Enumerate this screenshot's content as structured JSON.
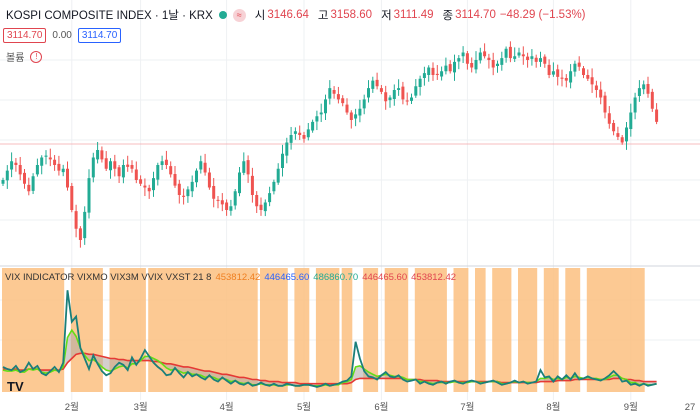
{
  "header": {
    "symbol": "KOSPI COMPOSITE INDEX · 1날 · KRX",
    "pill": "≈",
    "open_label": "시",
    "open": "3146.64",
    "high_label": "고",
    "high": "3158.60",
    "low_label": "저",
    "low": "3111.49",
    "close_label": "종",
    "close": "3114.70",
    "change": "−48.29 (−1.53%)"
  },
  "quote_boxes": {
    "sell": "3114.70",
    "spread": "0.00",
    "buy": "3114.70"
  },
  "volume": {
    "label": "볼륨",
    "warning_icon": "warning-icon"
  },
  "indicator": {
    "name": "VIX INDICATOR VIXMO VIX3M VVIX VXST 21 8",
    "v1": "453812.42",
    "v2": "446465.60",
    "v3": "486860.70",
    "v4": "446465.60",
    "v5": "453812.42"
  },
  "watermark": "TV",
  "colors": {
    "up": "#22ab94",
    "down": "#ef5350",
    "shade": "#fbbf80",
    "fast": "#1b7f7a",
    "slow": "#e53935",
    "signal": "#64dd17"
  },
  "chart_data": [
    {
      "type": "candlestick",
      "title": "KOSPI COMPOSITE INDEX",
      "price_line": 3114.7,
      "x_ticks": [
        "2월",
        "3월",
        "4월",
        "5월",
        "6월",
        "7월",
        "8월",
        "9월",
        "27"
      ],
      "trend": [
        2960,
        2985,
        3010,
        3000,
        2975,
        2950,
        2930,
        2970,
        3000,
        3020,
        3025,
        3015,
        3000,
        2985,
        2990,
        2940,
        2880,
        2830,
        2800,
        2875,
        2965,
        3020,
        3040,
        3015,
        2990,
        3010,
        2990,
        2970,
        3000,
        2995,
        2990,
        2960,
        2950,
        2940,
        2930,
        2965,
        3000,
        3010,
        3000,
        2975,
        2945,
        2920,
        2915,
        2935,
        2955,
        2985,
        3010,
        2980,
        2940,
        2910,
        2905,
        2895,
        2880,
        2890,
        2930,
        2980,
        3010,
        2975,
        2920,
        2890,
        2880,
        2900,
        2925,
        2955,
        2990,
        3030,
        3060,
        3080,
        3090,
        3080,
        3070,
        3095,
        3115,
        3130,
        3140,
        3175,
        3205,
        3190,
        3175,
        3165,
        3140,
        3120,
        3135,
        3150,
        3175,
        3205,
        3225,
        3210,
        3195,
        3170,
        3180,
        3200,
        3205,
        3175,
        3170,
        3180,
        3210,
        3230,
        3245,
        3260,
        3240,
        3240,
        3250,
        3265,
        3250,
        3275,
        3285,
        3300,
        3270,
        3260,
        3280,
        3300,
        3290,
        3280,
        3260,
        3270,
        3285,
        3310,
        3285,
        3290,
        3300,
        3290,
        3280,
        3290,
        3275,
        3285,
        3270,
        3240,
        3250,
        3235,
        3230,
        3225,
        3250,
        3270,
        3262,
        3240,
        3230,
        3215,
        3200,
        3180,
        3140,
        3110,
        3090,
        3075,
        3060,
        3100,
        3140,
        3180,
        3205,
        3215,
        3190,
        3150,
        3115
      ]
    },
    {
      "type": "line",
      "title": "VIX INDICATOR VIXMO VIX3M VVIX VXST 21 8",
      "series": [
        {
          "values": [
            2.2,
            2.0,
            1.9,
            2.3,
            1.7,
            1.9,
            2.6,
            2.0,
            2.3,
            1.6,
            1.4,
            1.8,
            2.2,
            1.7,
            2.6,
            9.5,
            6.5,
            7.0,
            4.0,
            3.0,
            2.0,
            3.3,
            2.5,
            1.8,
            1.4,
            1.6,
            2.2,
            2.6,
            2.4,
            1.9,
            3.1,
            2.4,
            3.0,
            3.8,
            3.2,
            2.6,
            2.2,
            1.9,
            1.4,
            1.5,
            2.1,
            1.6,
            1.2,
            1.7,
            1.3,
            1.5,
            1.2,
            1.0,
            1.4,
            1.0,
            0.8,
            1.2,
            0.9,
            0.6,
            0.9,
            0.6,
            0.5,
            0.7,
            0.4,
            0.5,
            0.7,
            0.5,
            0.4,
            0.6,
            0.4,
            0.4,
            0.6,
            0.5,
            0.4,
            0.4,
            0.5,
            0.5,
            0.4,
            0.3,
            0.4,
            0.6,
            0.4,
            0.5,
            0.6,
            0.8,
            0.9,
            1.3,
            4.6,
            3.0,
            1.8,
            1.3,
            1.2,
            1.0,
            1.4,
            1.7,
            1.3,
            1.2,
            1.4,
            1.0,
            0.8,
            0.9,
            1.0,
            0.6,
            0.8,
            0.6,
            0.5,
            0.7,
            0.8,
            0.6,
            0.8,
            0.9,
            0.7,
            0.6,
            0.8,
            0.9,
            0.8,
            0.6,
            0.7,
            0.8,
            0.9,
            0.7,
            0.5,
            0.6,
            0.7,
            0.9,
            0.7,
            0.8,
            0.6,
            0.7,
            0.8,
            1.9,
            1.2,
            1.3,
            0.8,
            1.3,
            1.0,
            1.4,
            1.0,
            1.6,
            1.0,
            1.1,
            1.3,
            1.1,
            1.0,
            0.9,
            1.1,
            1.4,
            1.8,
            1.4,
            0.8,
            0.9,
            0.5,
            0.6,
            0.4,
            0.6,
            0.4,
            0.5,
            0.6
          ]
        },
        {
          "values": [
            2.0,
            2.0,
            1.9,
            2.0,
            1.9,
            1.9,
            2.0,
            2.0,
            2.0,
            1.9,
            1.9,
            1.9,
            1.9,
            1.9,
            2.0,
            2.6,
            3.0,
            3.4,
            3.5,
            3.5,
            3.4,
            3.4,
            3.3,
            3.2,
            3.1,
            3.0,
            3.0,
            2.9,
            2.9,
            2.8,
            2.8,
            2.8,
            2.8,
            2.8,
            2.8,
            2.7,
            2.7,
            2.6,
            2.5,
            2.5,
            2.4,
            2.3,
            2.2,
            2.2,
            2.1,
            2.0,
            1.9,
            1.8,
            1.8,
            1.7,
            1.6,
            1.5,
            1.5,
            1.4,
            1.3,
            1.2,
            1.2,
            1.1,
            1.0,
            1.0,
            0.9,
            0.9,
            0.8,
            0.8,
            0.8,
            0.7,
            0.7,
            0.7,
            0.7,
            0.6,
            0.6,
            0.6,
            0.6,
            0.6,
            0.6,
            0.6,
            0.6,
            0.6,
            0.6,
            0.6,
            0.6,
            0.7,
            1.0,
            1.1,
            1.1,
            1.1,
            1.1,
            1.1,
            1.1,
            1.1,
            1.1,
            1.1,
            1.1,
            1.1,
            1.0,
            1.0,
            1.0,
            1.0,
            0.9,
            0.9,
            0.9,
            0.9,
            0.8,
            0.8,
            0.8,
            0.8,
            0.8,
            0.8,
            0.8,
            0.8,
            0.8,
            0.8,
            0.8,
            0.8,
            0.8,
            0.8,
            0.7,
            0.7,
            0.7,
            0.7,
            0.7,
            0.7,
            0.7,
            0.7,
            0.7,
            0.8,
            0.8,
            0.8,
            0.8,
            0.9,
            0.9,
            0.9,
            0.9,
            1.0,
            1.0,
            1.0,
            1.0,
            1.0,
            1.0,
            1.0,
            1.0,
            1.0,
            1.1,
            1.1,
            1.1,
            1.0,
            1.0,
            0.9,
            0.9,
            0.8,
            0.8,
            0.8,
            0.8
          ]
        },
        {
          "values": [
            1.9,
            1.8,
            1.8,
            1.9,
            1.7,
            1.7,
            2.0,
            1.9,
            2.0,
            1.7,
            1.6,
            1.7,
            1.9,
            1.8,
            2.2,
            5.0,
            5.7,
            5.1,
            4.0,
            3.3,
            2.8,
            2.9,
            2.6,
            2.2,
            1.9,
            1.8,
            2.0,
            2.2,
            2.3,
            2.1,
            2.5,
            2.5,
            2.8,
            3.2,
            3.2,
            3.0,
            2.8,
            2.5,
            2.1,
            1.9,
            2.0,
            1.8,
            1.6,
            1.7,
            1.5,
            1.5,
            1.4,
            1.2,
            1.3,
            1.2,
            1.0,
            1.1,
            1.0,
            0.8,
            0.9,
            0.7,
            0.6,
            0.7,
            0.5,
            0.5,
            0.6,
            0.5,
            0.5,
            0.5,
            0.4,
            0.4,
            0.5,
            0.5,
            0.4,
            0.4,
            0.5,
            0.5,
            0.4,
            0.4,
            0.4,
            0.5,
            0.4,
            0.5,
            0.5,
            0.7,
            0.8,
            1.0,
            2.2,
            2.3,
            2.0,
            1.7,
            1.5,
            1.3,
            1.4,
            1.5,
            1.4,
            1.3,
            1.3,
            1.2,
            1.0,
            1.0,
            1.0,
            0.8,
            0.8,
            0.7,
            0.6,
            0.7,
            0.7,
            0.7,
            0.7,
            0.8,
            0.7,
            0.7,
            0.7,
            0.8,
            0.8,
            0.7,
            0.7,
            0.8,
            0.8,
            0.8,
            0.6,
            0.6,
            0.7,
            0.8,
            0.7,
            0.8,
            0.7,
            0.7,
            0.8,
            1.1,
            1.1,
            1.2,
            1.0,
            1.1,
            1.0,
            1.2,
            1.1,
            1.3,
            1.2,
            1.1,
            1.2,
            1.1,
            1.1,
            1.0,
            1.0,
            1.2,
            1.4,
            1.4,
            1.1,
            1.0,
            0.7,
            0.7,
            0.5,
            0.6,
            0.5,
            0.5,
            0.6
          ]
        }
      ],
      "shaded": [
        [
          0,
          14
        ],
        [
          16,
          23
        ],
        [
          25,
          33
        ],
        [
          34,
          59
        ],
        [
          60,
          66
        ],
        [
          68,
          71
        ],
        [
          73,
          78
        ],
        [
          79,
          81
        ],
        [
          84,
          87
        ],
        [
          89,
          94
        ],
        [
          96,
          103
        ],
        [
          105,
          108
        ],
        [
          110,
          112
        ],
        [
          114,
          118
        ],
        [
          120,
          124
        ],
        [
          126,
          129
        ],
        [
          131,
          134
        ],
        [
          136,
          149
        ]
      ]
    }
  ]
}
